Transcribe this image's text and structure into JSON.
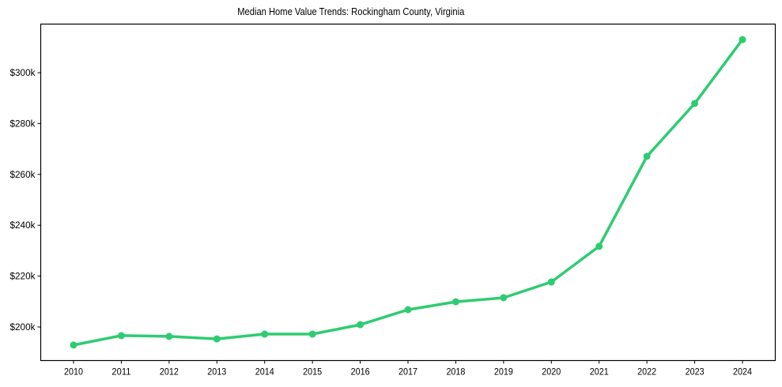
{
  "chart_data": {
    "type": "line",
    "title": "Median Home Value Trends: Rockingham County, Virginia",
    "xlabel": "",
    "ylabel": "",
    "x": [
      "2010",
      "2011",
      "2012",
      "2013",
      "2014",
      "2015",
      "2016",
      "2017",
      "2018",
      "2019",
      "2020",
      "2021",
      "2022",
      "2023",
      "2024"
    ],
    "series": [
      {
        "name": "Median Home Value",
        "color": "#2ecc71",
        "marker": "circle",
        "values": [
          192900,
          196600,
          196300,
          195300,
          197200,
          197200,
          200900,
          206800,
          209900,
          211500,
          217700,
          231700,
          267100,
          287900,
          313000
        ]
      }
    ],
    "yticks": [
      200000,
      220000,
      240000,
      260000,
      280000,
      300000
    ],
    "ytick_labels": [
      "$200k",
      "$220k",
      "$240k",
      "$260k",
      "$280k",
      "$300k"
    ],
    "ylim": [
      185600,
      318700
    ],
    "grid": false,
    "legend": null
  },
  "colors": {
    "line": "#2ecc71",
    "axis": "#000000",
    "background": "#ffffff"
  }
}
